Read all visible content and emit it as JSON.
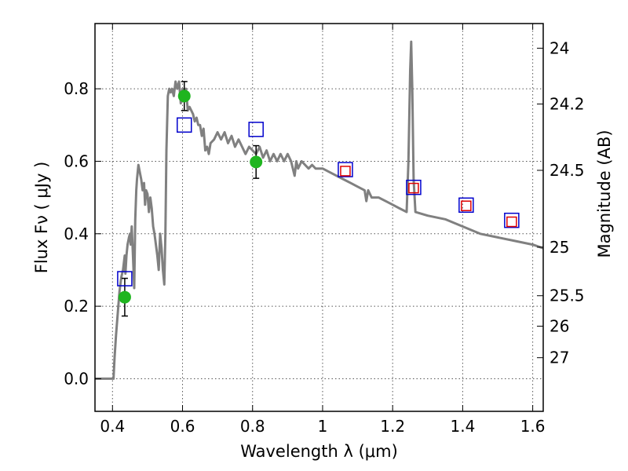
{
  "chart_data": {
    "type": "scatter",
    "title": "",
    "xlabel": "Wavelength  λ (μm)",
    "ylabel": "Flux  Fν  ( μJy )",
    "ylabel_right": "Magnitude (AB)",
    "xlim": [
      0.35,
      1.63
    ],
    "ylim": [
      -0.09,
      0.98
    ],
    "grid": true,
    "legend": "none",
    "x_ticks": [
      {
        "value": 0.4,
        "label": "0.4"
      },
      {
        "value": 0.6,
        "label": "0.6"
      },
      {
        "value": 0.8,
        "label": "0.8"
      },
      {
        "value": 1.0,
        "label": "1"
      },
      {
        "value": 1.2,
        "label": "1.2"
      },
      {
        "value": 1.4,
        "label": "1.4"
      },
      {
        "value": 1.6,
        "label": "1.6"
      }
    ],
    "y_ticks": [
      {
        "value": 0.0,
        "label": "0.0"
      },
      {
        "value": 0.2,
        "label": "0.2"
      },
      {
        "value": 0.4,
        "label": "0.4"
      },
      {
        "value": 0.6,
        "label": "0.6"
      },
      {
        "value": 0.8,
        "label": "0.8"
      }
    ],
    "right_ticks": [
      {
        "flux": 0.912,
        "label": "24"
      },
      {
        "flux": 0.758,
        "label": "24.2"
      },
      {
        "flux": 0.575,
        "label": "24.5"
      },
      {
        "flux": 0.363,
        "label": "25"
      },
      {
        "flux": 0.229,
        "label": "25.5"
      },
      {
        "flux": 0.145,
        "label": "26"
      },
      {
        "flux": 0.058,
        "label": "27"
      }
    ],
    "series": [
      {
        "style": "line",
        "color": "#808080",
        "points": [
          [
            0.35,
            0.0
          ],
          [
            0.403,
            0.0
          ],
          [
            0.406,
            0.06
          ],
          [
            0.41,
            0.12
          ],
          [
            0.415,
            0.18
          ],
          [
            0.42,
            0.24
          ],
          [
            0.425,
            0.28
          ],
          [
            0.43,
            0.3
          ],
          [
            0.435,
            0.34
          ],
          [
            0.437,
            0.29
          ],
          [
            0.44,
            0.34
          ],
          [
            0.443,
            0.37
          ],
          [
            0.447,
            0.39
          ],
          [
            0.45,
            0.4
          ],
          [
            0.452,
            0.37
          ],
          [
            0.455,
            0.42
          ],
          [
            0.458,
            0.35
          ],
          [
            0.46,
            0.3
          ],
          [
            0.462,
            0.25
          ],
          [
            0.465,
            0.44
          ],
          [
            0.468,
            0.52
          ],
          [
            0.47,
            0.55
          ],
          [
            0.474,
            0.59
          ],
          [
            0.478,
            0.57
          ],
          [
            0.482,
            0.55
          ],
          [
            0.486,
            0.52
          ],
          [
            0.49,
            0.54
          ],
          [
            0.493,
            0.48
          ],
          [
            0.496,
            0.52
          ],
          [
            0.5,
            0.51
          ],
          [
            0.504,
            0.46
          ],
          [
            0.508,
            0.5
          ],
          [
            0.512,
            0.47
          ],
          [
            0.516,
            0.42
          ],
          [
            0.52,
            0.4
          ],
          [
            0.524,
            0.37
          ],
          [
            0.528,
            0.34
          ],
          [
            0.532,
            0.3
          ],
          [
            0.536,
            0.4
          ],
          [
            0.54,
            0.36
          ],
          [
            0.544,
            0.3
          ],
          [
            0.548,
            0.26
          ],
          [
            0.551,
            0.4
          ],
          [
            0.554,
            0.63
          ],
          [
            0.558,
            0.78
          ],
          [
            0.562,
            0.8
          ],
          [
            0.566,
            0.79
          ],
          [
            0.57,
            0.8
          ],
          [
            0.575,
            0.78
          ],
          [
            0.58,
            0.82
          ],
          [
            0.585,
            0.8
          ],
          [
            0.59,
            0.82
          ],
          [
            0.595,
            0.76
          ],
          [
            0.6,
            0.8
          ],
          [
            0.605,
            0.79
          ],
          [
            0.61,
            0.8
          ],
          [
            0.615,
            0.74
          ],
          [
            0.62,
            0.75
          ],
          [
            0.625,
            0.74
          ],
          [
            0.63,
            0.73
          ],
          [
            0.635,
            0.71
          ],
          [
            0.64,
            0.72
          ],
          [
            0.645,
            0.7
          ],
          [
            0.65,
            0.7
          ],
          [
            0.655,
            0.67
          ],
          [
            0.66,
            0.69
          ],
          [
            0.665,
            0.63
          ],
          [
            0.67,
            0.64
          ],
          [
            0.675,
            0.62
          ],
          [
            0.68,
            0.65
          ],
          [
            0.69,
            0.66
          ],
          [
            0.7,
            0.68
          ],
          [
            0.71,
            0.66
          ],
          [
            0.72,
            0.68
          ],
          [
            0.73,
            0.65
          ],
          [
            0.74,
            0.67
          ],
          [
            0.75,
            0.64
          ],
          [
            0.76,
            0.66
          ],
          [
            0.77,
            0.64
          ],
          [
            0.78,
            0.62
          ],
          [
            0.79,
            0.64
          ],
          [
            0.8,
            0.63
          ],
          [
            0.81,
            0.62
          ],
          [
            0.82,
            0.64
          ],
          [
            0.83,
            0.61
          ],
          [
            0.84,
            0.63
          ],
          [
            0.85,
            0.6
          ],
          [
            0.86,
            0.62
          ],
          [
            0.87,
            0.6
          ],
          [
            0.88,
            0.62
          ],
          [
            0.89,
            0.6
          ],
          [
            0.9,
            0.62
          ],
          [
            0.91,
            0.6
          ],
          [
            0.92,
            0.56
          ],
          [
            0.925,
            0.6
          ],
          [
            0.93,
            0.58
          ],
          [
            0.94,
            0.6
          ],
          [
            0.95,
            0.59
          ],
          [
            0.96,
            0.58
          ],
          [
            0.97,
            0.59
          ],
          [
            0.98,
            0.58
          ],
          [
            1.0,
            0.58
          ],
          [
            1.02,
            0.57
          ],
          [
            1.04,
            0.56
          ],
          [
            1.06,
            0.55
          ],
          [
            1.08,
            0.54
          ],
          [
            1.1,
            0.53
          ],
          [
            1.12,
            0.52
          ],
          [
            1.125,
            0.49
          ],
          [
            1.13,
            0.52
          ],
          [
            1.14,
            0.5
          ],
          [
            1.16,
            0.5
          ],
          [
            1.18,
            0.49
          ],
          [
            1.2,
            0.48
          ],
          [
            1.22,
            0.47
          ],
          [
            1.24,
            0.46
          ],
          [
            1.245,
            0.6
          ],
          [
            1.25,
            0.85
          ],
          [
            1.253,
            0.93
          ],
          [
            1.256,
            0.8
          ],
          [
            1.26,
            0.55
          ],
          [
            1.265,
            0.46
          ],
          [
            1.3,
            0.45
          ],
          [
            1.35,
            0.44
          ],
          [
            1.4,
            0.42
          ],
          [
            1.45,
            0.4
          ],
          [
            1.5,
            0.39
          ],
          [
            1.55,
            0.38
          ],
          [
            1.6,
            0.37
          ],
          [
            1.63,
            0.36
          ]
        ]
      },
      {
        "style": "errorbar",
        "marker": "filled-circle",
        "color": "#1fb51f",
        "points": [
          {
            "x": 0.435,
            "y": 0.225,
            "err": 0.052
          },
          {
            "x": 0.605,
            "y": 0.78,
            "err": 0.04
          },
          {
            "x": 0.81,
            "y": 0.598,
            "err": 0.045
          }
        ]
      },
      {
        "style": "marker",
        "marker": "open-square",
        "color": "#0000cc",
        "points": [
          [
            0.435,
            0.276
          ],
          [
            0.605,
            0.7
          ],
          [
            0.81,
            0.688
          ],
          [
            1.065,
            0.577
          ],
          [
            1.26,
            0.528
          ],
          [
            1.41,
            0.479
          ],
          [
            1.54,
            0.437
          ]
        ]
      },
      {
        "style": "marker",
        "marker": "small-open-square",
        "color": "#e00000",
        "points": [
          [
            1.065,
            0.573
          ],
          [
            1.26,
            0.526
          ],
          [
            1.41,
            0.477
          ],
          [
            1.54,
            0.433
          ]
        ]
      }
    ]
  }
}
